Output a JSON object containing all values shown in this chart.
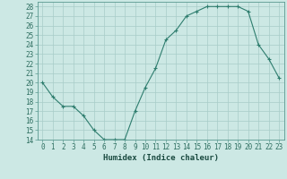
{
  "x": [
    0,
    1,
    2,
    3,
    4,
    5,
    6,
    7,
    8,
    9,
    10,
    11,
    12,
    13,
    14,
    15,
    16,
    17,
    18,
    19,
    20,
    21,
    22,
    23
  ],
  "y": [
    20,
    18.5,
    17.5,
    17.5,
    16.5,
    15,
    14,
    14,
    14,
    17,
    19.5,
    21.5,
    24.5,
    25.5,
    27,
    27.5,
    28,
    28,
    28,
    28,
    27.5,
    24,
    22.5,
    20.5
  ],
  "line_color": "#2e7d6e",
  "marker": "+",
  "marker_size": 3,
  "marker_lw": 0.8,
  "line_width": 0.8,
  "bg_color": "#cce8e4",
  "grid_color": "#a8ccc8",
  "xlabel": "Humidex (Indice chaleur)",
  "ylim": [
    14,
    28.5
  ],
  "xlim": [
    -0.5,
    23.5
  ],
  "yticks": [
    14,
    15,
    16,
    17,
    18,
    19,
    20,
    21,
    22,
    23,
    24,
    25,
    26,
    27,
    28
  ],
  "xticks": [
    0,
    1,
    2,
    3,
    4,
    5,
    6,
    7,
    8,
    9,
    10,
    11,
    12,
    13,
    14,
    15,
    16,
    17,
    18,
    19,
    20,
    21,
    22,
    23
  ],
  "tick_fontsize": 5.5,
  "label_fontsize": 6.5,
  "tick_color": "#2e6e60",
  "label_color": "#1a4a40",
  "spine_color": "#5a9990"
}
